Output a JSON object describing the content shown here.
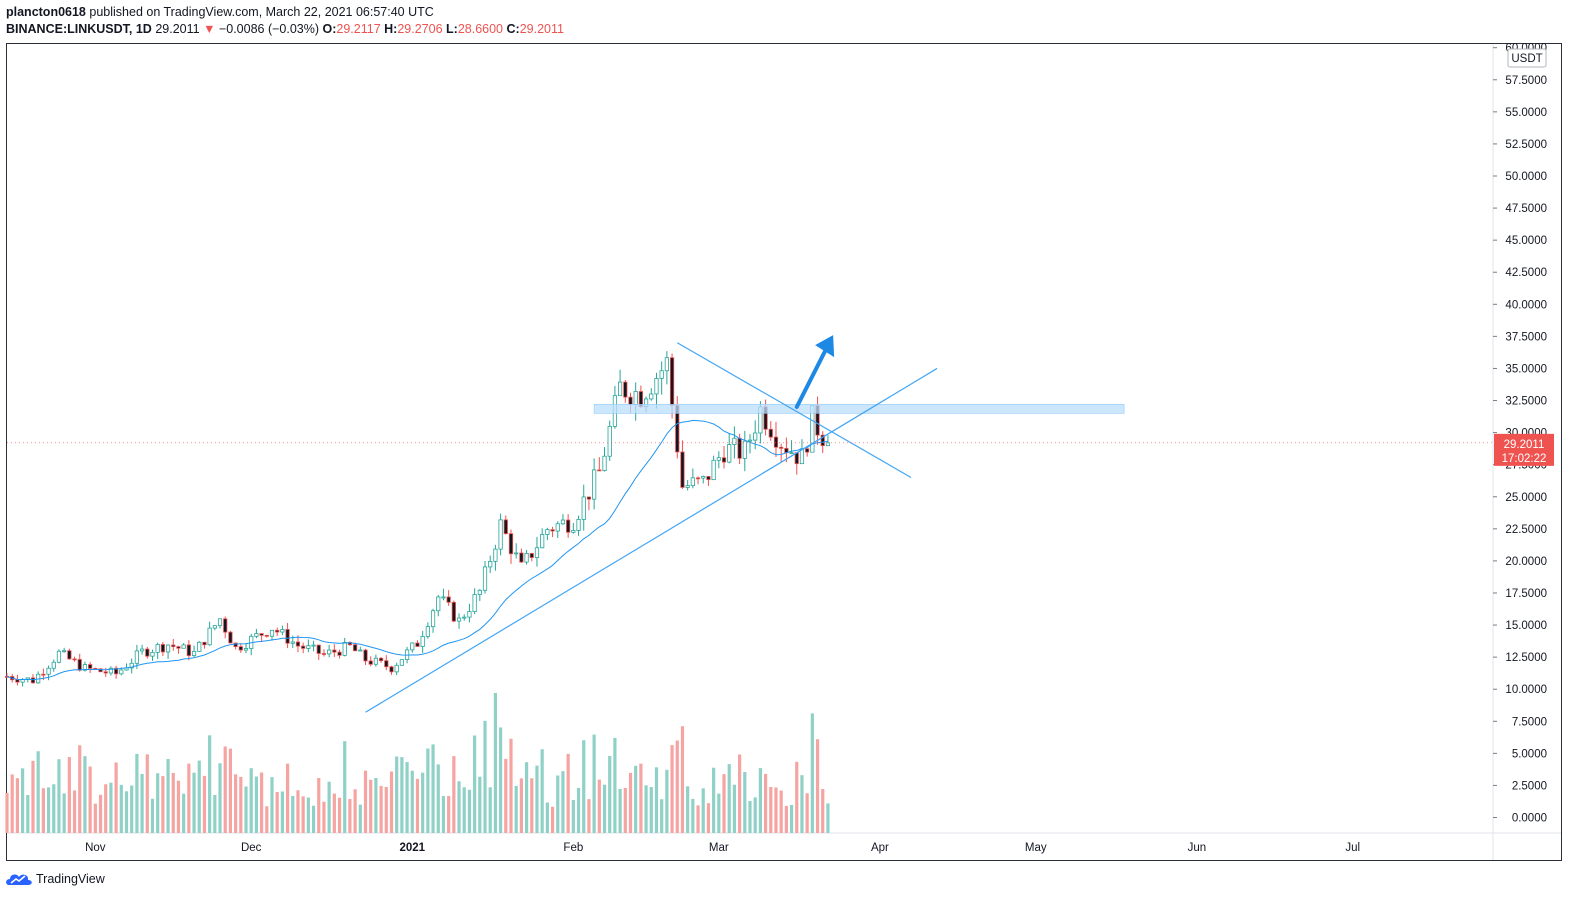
{
  "header": {
    "author": "plancton0618",
    "published_text": "published on TradingView.com, March 22, 2021 06:57:40 UTC",
    "symbol": "BINANCE:LINKUSDT, 1D",
    "last": "29.2011",
    "change_arrow": "▼",
    "change": "−0.0086 (−0.03%)",
    "o_label": "O:",
    "o_value": "29.2117",
    "h_label": "H:",
    "h_value": "29.2706",
    "l_label": "L:",
    "l_value": "28.6600",
    "c_label": "C:",
    "c_value": "29.2011"
  },
  "footer": {
    "brand": "TradingView"
  },
  "colors": {
    "up": "#26a69a",
    "down": "#ef5350",
    "up_vol": "#8fd1c6",
    "down_vol": "#f5a4a2",
    "ma": "#2196f3",
    "trend": "#42a5f5",
    "zone": "#bbdefb",
    "price_tag": "#ef5350"
  },
  "chart_data": {
    "type": "candlestick",
    "symbol": "LINKUSDT",
    "interval": "1D",
    "currency_label": "USDT",
    "y_ticks": [
      "0.0000",
      "2.5000",
      "5.0000",
      "7.5000",
      "10.0000",
      "12.5000",
      "15.0000",
      "17.5000",
      "20.0000",
      "22.5000",
      "25.0000",
      "27.5000",
      "30.0000",
      "32.5000",
      "35.0000",
      "37.5000",
      "40.0000",
      "42.5000",
      "45.0000",
      "47.5000",
      "50.0000",
      "52.5000",
      "55.0000",
      "57.5000",
      "60.0000"
    ],
    "ylim": [
      0,
      60
    ],
    "x_ticks": [
      {
        "label": "Nov",
        "date": "2020-11-01",
        "bold": false
      },
      {
        "label": "Dec",
        "date": "2020-12-01",
        "bold": false
      },
      {
        "label": "2021",
        "date": "2021-01-01",
        "bold": true
      },
      {
        "label": "Feb",
        "date": "2021-02-01",
        "bold": false
      },
      {
        "label": "Mar",
        "date": "2021-03-01",
        "bold": false
      },
      {
        "label": "Apr",
        "date": "2021-04-01",
        "bold": false
      },
      {
        "label": "May",
        "date": "2021-05-01",
        "bold": false
      },
      {
        "label": "Jun",
        "date": "2021-06-01",
        "bold": false
      },
      {
        "label": "Jul",
        "date": "2021-07-01",
        "bold": false
      }
    ],
    "xlim": [
      "2020-10-15",
      "2021-07-28"
    ],
    "last_price_label": "29.2011",
    "countdown_label": "17:02:22",
    "close_series": [
      {
        "date": "2020-10-15",
        "close": 11.0
      },
      {
        "date": "2020-10-20",
        "close": 10.7
      },
      {
        "date": "2020-10-25",
        "close": 12.8
      },
      {
        "date": "2020-10-30",
        "close": 11.6
      },
      {
        "date": "2020-11-05",
        "close": 11.2
      },
      {
        "date": "2020-11-10",
        "close": 12.9
      },
      {
        "date": "2020-11-15",
        "close": 13.5
      },
      {
        "date": "2020-11-20",
        "close": 12.8
      },
      {
        "date": "2020-11-25",
        "close": 15.5
      },
      {
        "date": "2020-11-28",
        "close": 13.2
      },
      {
        "date": "2020-12-05",
        "close": 14.8
      },
      {
        "date": "2020-12-10",
        "close": 13.4
      },
      {
        "date": "2020-12-15",
        "close": 12.7
      },
      {
        "date": "2020-12-20",
        "close": 13.3
      },
      {
        "date": "2020-12-23",
        "close": 12.3
      },
      {
        "date": "2020-12-28",
        "close": 11.7
      },
      {
        "date": "2021-01-02",
        "close": 13.6
      },
      {
        "date": "2021-01-06",
        "close": 17.2
      },
      {
        "date": "2021-01-10",
        "close": 15.3
      },
      {
        "date": "2021-01-14",
        "close": 17.6
      },
      {
        "date": "2021-01-18",
        "close": 22.8
      },
      {
        "date": "2021-01-22",
        "close": 19.4
      },
      {
        "date": "2021-01-27",
        "close": 22.5
      },
      {
        "date": "2021-02-01",
        "close": 23.2
      },
      {
        "date": "2021-02-06",
        "close": 26.9
      },
      {
        "date": "2021-02-10",
        "close": 33.5
      },
      {
        "date": "2021-02-14",
        "close": 33.0
      },
      {
        "date": "2021-02-19",
        "close": 35.4
      },
      {
        "date": "2021-02-22",
        "close": 25.8
      },
      {
        "date": "2021-02-26",
        "close": 26.1
      },
      {
        "date": "2021-03-02",
        "close": 28.7
      },
      {
        "date": "2021-03-06",
        "close": 28.5
      },
      {
        "date": "2021-03-09",
        "close": 31.8
      },
      {
        "date": "2021-03-13",
        "close": 29.3
      },
      {
        "date": "2021-03-17",
        "close": 28.0
      },
      {
        "date": "2021-03-19",
        "close": 31.0
      },
      {
        "date": "2021-03-22",
        "close": 29.2011
      }
    ],
    "volume_profile": "daily volume bars, peak near 2021-01-17",
    "moving_average": {
      "type": "MA",
      "period": 20
    },
    "annotations": {
      "resistance_zone": {
        "from_date": "2021-02-05",
        "to_date": "2021-05-18",
        "low": 31.5,
        "high": 32.2
      },
      "descending_trendline": [
        {
          "date": "2021-02-21",
          "price": 37.0
        },
        {
          "date": "2021-04-07",
          "price": 26.5
        }
      ],
      "ascending_trendline": [
        {
          "date": "2020-12-23",
          "price": 8.2
        },
        {
          "date": "2021-04-12",
          "price": 35.0
        }
      ],
      "breakout_arrow": [
        {
          "date": "2021-03-16",
          "price": 32.0
        },
        {
          "date": "2021-03-23",
          "price": 37.6
        }
      ]
    }
  }
}
